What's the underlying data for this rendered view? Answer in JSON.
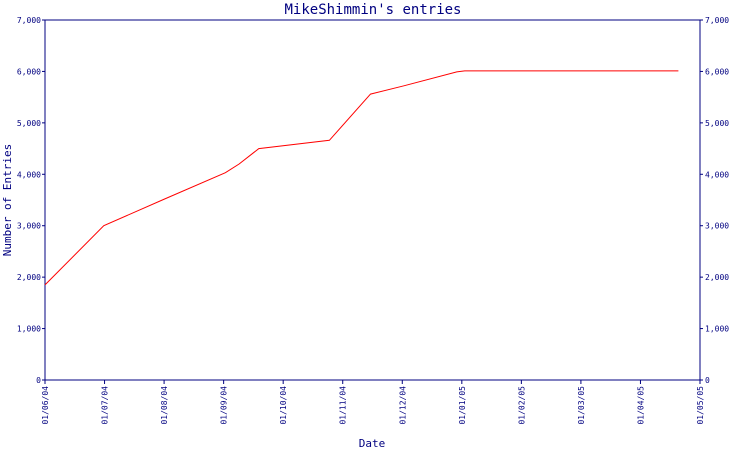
{
  "chart_data": {
    "type": "line",
    "title": "MikeShimmin's entries",
    "xlabel": "Date",
    "ylabel": "Number of Entries",
    "ylim": [
      0,
      7000
    ],
    "y_ticks": [
      "0",
      "1,000",
      "2,000",
      "3,000",
      "4,000",
      "5,000",
      "6,000",
      "7,000"
    ],
    "x_ticks": [
      "01/06/04",
      "01/07/04",
      "01/08/04",
      "01/09/04",
      "01/10/04",
      "01/11/04",
      "01/12/04",
      "01/01/05",
      "01/02/05",
      "01/03/05",
      "01/04/05",
      "01/05/05"
    ],
    "grid": false,
    "series": [
      {
        "color": "#ff0000",
        "x": [
          "2004-06-01",
          "2004-07-01",
          "2004-08-01",
          "2004-09-01",
          "2004-09-08",
          "2004-09-18",
          "2004-10-24",
          "2004-11-14",
          "2004-12-01",
          "2004-12-28",
          "2005-01-01",
          "2005-04-20"
        ],
        "values": [
          1850,
          3000,
          3520,
          4030,
          4200,
          4500,
          4660,
          5560,
          5720,
          5990,
          6010,
          6010
        ]
      }
    ]
  }
}
